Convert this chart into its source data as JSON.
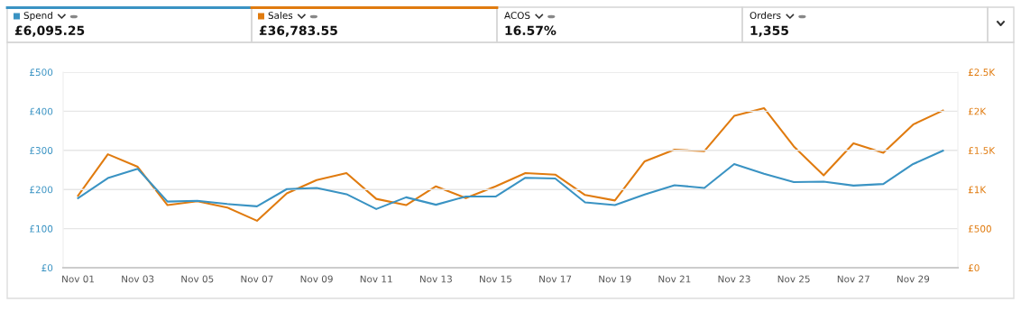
{
  "chart_data": {
    "type": "line",
    "categories": [
      "Nov 01",
      null,
      "Nov 03",
      null,
      "Nov 05",
      null,
      "Nov 07",
      null,
      "Nov 09",
      null,
      "Nov 11",
      null,
      "Nov 13",
      null,
      "Nov 15",
      null,
      "Nov 17",
      null,
      "Nov 19",
      null,
      "Nov 21",
      null,
      "Nov 23",
      null,
      "Nov 25",
      null,
      "Nov 27",
      null,
      "Nov 29",
      null
    ],
    "series": [
      {
        "name": "Spend",
        "color": "#3a93c3",
        "values": [
          178,
          229,
          253,
          169,
          171,
          163,
          157,
          201,
          204,
          188,
          150,
          180,
          161,
          182,
          182,
          230,
          228,
          167,
          160,
          187,
          211,
          204,
          265,
          240,
          219,
          220,
          210,
          214,
          265,
          299
        ]
      },
      {
        "name": "Sales",
        "color": "#e07b0f",
        "axis": "y2",
        "values": [
          920,
          1450,
          1290,
          800,
          850,
          770,
          600,
          950,
          1120,
          1210,
          880,
          800,
          1040,
          890,
          1040,
          1210,
          1190,
          930,
          860,
          1360,
          1510,
          1490,
          1940,
          2040,
          1550,
          1180,
          1590,
          1470,
          1830,
          2010
        ]
      }
    ],
    "ylim": [
      0,
      500
    ],
    "yticks": [
      {
        "value": 0,
        "label": "£0"
      },
      {
        "value": 100,
        "label": "£100"
      },
      {
        "value": 200,
        "label": "£200"
      },
      {
        "value": 300,
        "label": "£300"
      },
      {
        "value": 400,
        "label": "£400"
      },
      {
        "value": 500,
        "label": "£500"
      }
    ],
    "y2lim": [
      0,
      2500
    ],
    "y2ticks": [
      {
        "value": 0,
        "label": "£0"
      },
      {
        "value": 500,
        "label": "£500"
      },
      {
        "value": 1000,
        "label": "£1K"
      },
      {
        "value": 1500,
        "label": "£1.5K"
      },
      {
        "value": 2000,
        "label": "£2K"
      },
      {
        "value": 2500,
        "label": "£2.5K"
      }
    ],
    "grid": "y",
    "legend": "top left",
    "annotations": [
      "£6,095.25",
      "£36,783.55",
      "ACOS",
      "16.57%",
      "Orders",
      "1,355"
    ]
  }
}
